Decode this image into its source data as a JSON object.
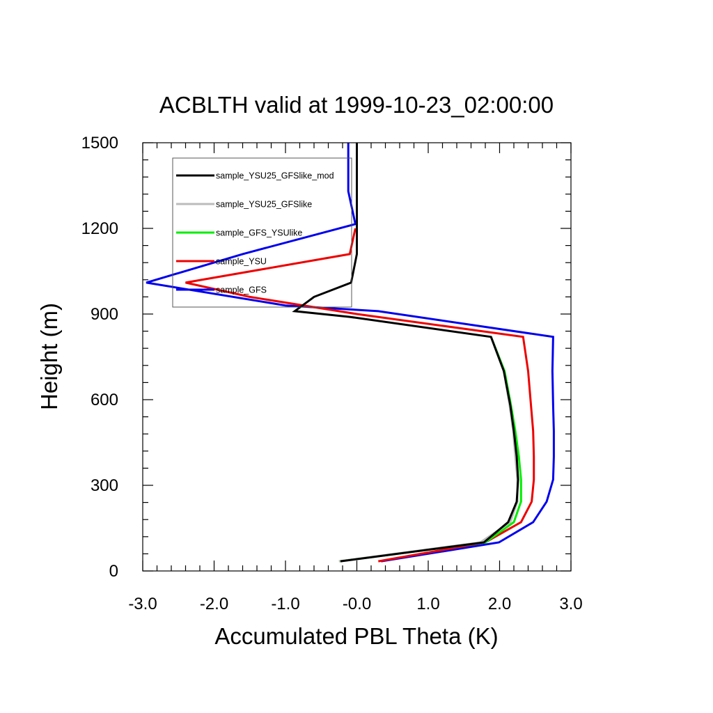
{
  "chart_data": {
    "type": "line",
    "title": "ACBLTH valid at 1999-10-23_02:00:00",
    "xlabel": "Accumulated PBL Theta (K)",
    "ylabel": "Height (m)",
    "xlim": [
      -3.0,
      3.0
    ],
    "ylim": [
      0,
      1500
    ],
    "x_ticks": [
      {
        "value": -3.0,
        "label": "-3.0"
      },
      {
        "value": -2.0,
        "label": "-2.0"
      },
      {
        "value": -1.0,
        "label": "-1.0"
      },
      {
        "value": 0.0,
        "label": "-0.0"
      },
      {
        "value": 1.0,
        "label": "1.0"
      },
      {
        "value": 2.0,
        "label": "2.0"
      },
      {
        "value": 3.0,
        "label": "3.0"
      }
    ],
    "y_ticks": [
      {
        "value": 0,
        "label": "0"
      },
      {
        "value": 300,
        "label": "300"
      },
      {
        "value": 600,
        "label": "600"
      },
      {
        "value": 900,
        "label": "900"
      },
      {
        "value": 1200,
        "label": "1200"
      },
      {
        "value": 1500,
        "label": "1500"
      }
    ],
    "x_minor_step": 0.2,
    "y_minor_step": 60,
    "grid": false,
    "legend_position": "top-left",
    "series": [
      {
        "name": "sample_GFS",
        "color": "#0000ee",
        "points": [
          [
            0.34,
            34
          ],
          [
            1.99,
            100
          ],
          [
            2.47,
            171
          ],
          [
            2.66,
            243
          ],
          [
            2.75,
            320
          ],
          [
            2.76,
            400
          ],
          [
            2.76,
            490
          ],
          [
            2.75,
            580
          ],
          [
            2.74,
            700
          ],
          [
            2.75,
            820
          ],
          [
            0.3,
            910
          ],
          [
            -1.0,
            930
          ],
          [
            -2.95,
            1010
          ],
          [
            -1.6,
            1110
          ],
          [
            -0.02,
            1215
          ],
          [
            -0.12,
            1330
          ],
          [
            -0.12,
            1500
          ]
        ]
      },
      {
        "name": "sample_YSU",
        "color": "#ee0000",
        "points": [
          [
            0.3,
            34
          ],
          [
            1.8,
            100
          ],
          [
            2.3,
            171
          ],
          [
            2.45,
            243
          ],
          [
            2.48,
            320
          ],
          [
            2.48,
            400
          ],
          [
            2.47,
            490
          ],
          [
            2.44,
            580
          ],
          [
            2.4,
            700
          ],
          [
            2.33,
            820
          ],
          [
            0.0,
            900
          ],
          [
            -1.5,
            960
          ],
          [
            -2.4,
            1010
          ],
          [
            -0.1,
            1110
          ],
          [
            -0.02,
            1200
          ]
        ]
      },
      {
        "name": "sample_GFS_YSUlike",
        "color": "#00ee00",
        "points": [
          [
            -0.25,
            34
          ],
          [
            1.8,
            100
          ],
          [
            2.2,
            171
          ],
          [
            2.3,
            243
          ],
          [
            2.3,
            320
          ],
          [
            2.27,
            400
          ],
          [
            2.22,
            490
          ],
          [
            2.16,
            580
          ],
          [
            2.07,
            700
          ],
          [
            1.88,
            820
          ]
        ]
      },
      {
        "name": "sample_YSU25_GFSlike",
        "color": "#bbbbbb",
        "points": [
          [
            -0.25,
            34
          ],
          [
            1.73,
            100
          ],
          [
            2.15,
            171
          ],
          [
            2.25,
            243
          ],
          [
            2.25,
            320
          ],
          [
            2.22,
            400
          ],
          [
            2.19,
            490
          ],
          [
            2.14,
            580
          ],
          [
            2.06,
            700
          ],
          [
            1.88,
            820
          ]
        ]
      },
      {
        "name": "sample_YSU25_GFSlike_mod",
        "color": "#000000",
        "points": [
          [
            -0.23,
            34
          ],
          [
            1.78,
            100
          ],
          [
            2.12,
            171
          ],
          [
            2.24,
            243
          ],
          [
            2.26,
            320
          ],
          [
            2.24,
            400
          ],
          [
            2.2,
            490
          ],
          [
            2.15,
            580
          ],
          [
            2.06,
            700
          ],
          [
            1.88,
            820
          ],
          [
            -0.1,
            890
          ],
          [
            -0.87,
            910
          ],
          [
            -0.6,
            960
          ],
          [
            -0.08,
            1010
          ],
          [
            0.0,
            1110
          ],
          [
            0.0,
            1200
          ],
          [
            0.0,
            1500
          ]
        ]
      }
    ],
    "legend_order": [
      "sample_YSU25_GFSlike_mod",
      "sample_YSU25_GFSlike",
      "sample_GFS_YSUlike",
      "sample_YSU",
      "sample_GFS"
    ]
  }
}
